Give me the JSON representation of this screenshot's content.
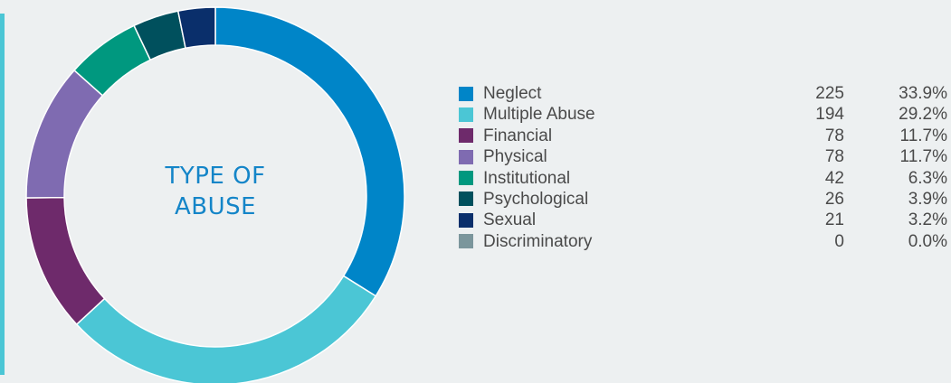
{
  "chart_data": {
    "type": "pie",
    "title": "TYPE OF ABUSE",
    "categories": [
      "Neglect",
      "Multiple Abuse",
      "Financial",
      "Physical",
      "Institutional",
      "Psychological",
      "Sexual",
      "Discriminatory"
    ],
    "values": [
      225,
      194,
      78,
      78,
      42,
      26,
      21,
      0
    ],
    "percentages": [
      "33.9%",
      "29.2%",
      "11.7%",
      "11.7%",
      "6.3%",
      "3.9%",
      "3.2%",
      "0.0%"
    ],
    "counts_text": [
      "225",
      "194",
      "78",
      "78",
      "42",
      "26",
      "21",
      "0"
    ],
    "colors": [
      "#0085c8",
      "#4bc6d5",
      "#6e2a6b",
      "#7f6bb1",
      "#00987f",
      "#00505d",
      "#0a2f6b",
      "#7b969c"
    ],
    "donut": true,
    "legend_position": "right"
  },
  "title_lines": [
    "TYPE OF",
    "ABUSE"
  ],
  "accent_color": "#4bc6d5",
  "background_color": "#edf0f1"
}
